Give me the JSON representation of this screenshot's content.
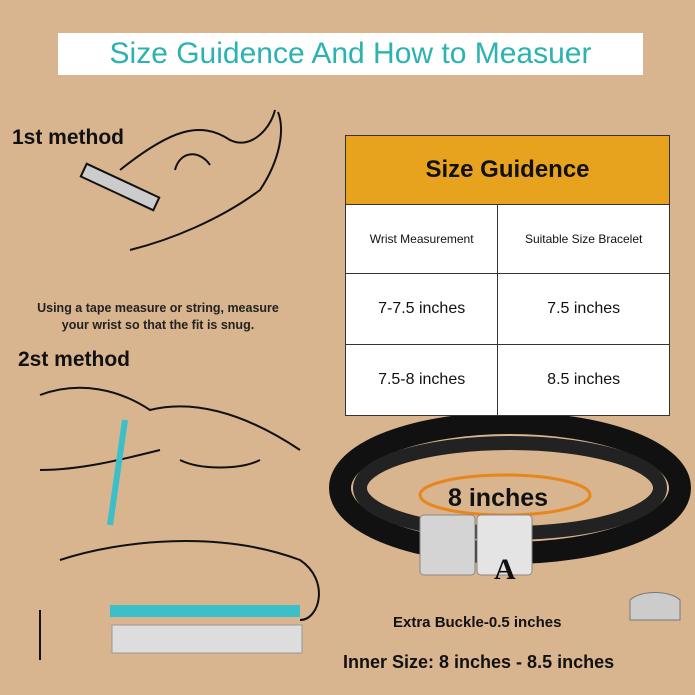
{
  "title": "Size Guidence And How to Measuer",
  "method1": {
    "label": "1st method",
    "description_line1": "Using a tape measure or string, measure",
    "description_line2": "your wrist so that the fit is snug."
  },
  "method2": {
    "label": "2st method"
  },
  "size_table": {
    "title": "Size Guidence",
    "headers": [
      "Wrist Measurement",
      "Suitable Size Bracelet"
    ],
    "rows": [
      [
        "7-7.5 inches",
        "7.5 inches"
      ],
      [
        "7.5-8 inches",
        "8.5 inches"
      ]
    ]
  },
  "bracelet": {
    "circumference_label": "8 inches",
    "letter": "A",
    "extra_buckle": "Extra Buckle-0.5 inches",
    "inner_size": "Inner Size: 8 inches - 8.5 inches"
  },
  "colors": {
    "background": "#d8b48f",
    "title_text": "#2ab3b1",
    "table_header": "#e8a31e",
    "tape": "#3bbfc9"
  }
}
